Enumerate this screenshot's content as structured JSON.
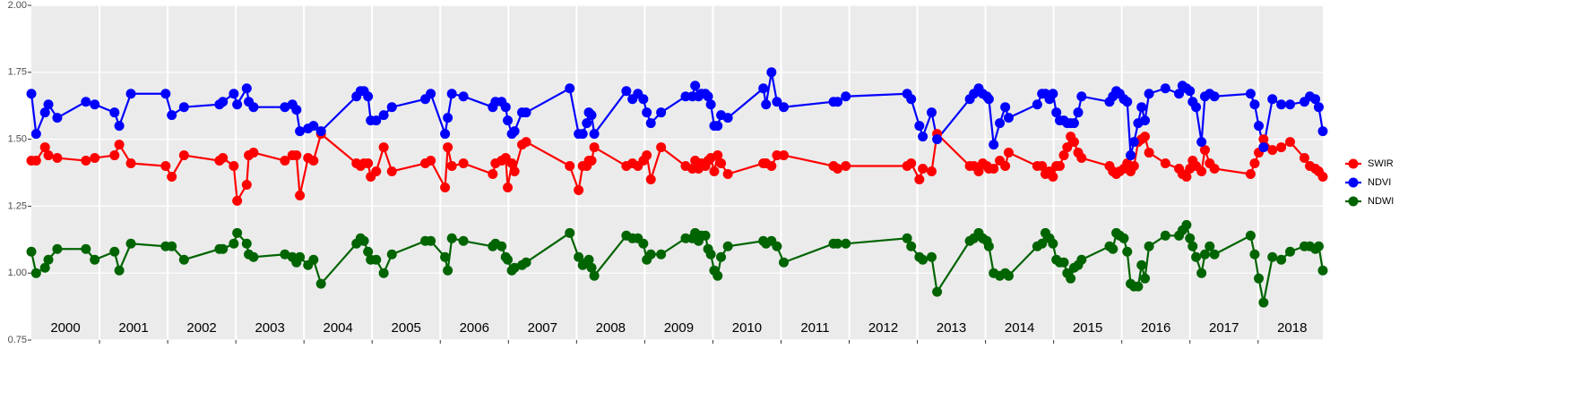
{
  "chart_data": {
    "type": "line",
    "x": [
      2000.0,
      2000.07,
      2000.2,
      2000.25,
      2000.38,
      2000.8,
      2000.93,
      2001.22,
      2001.29,
      2001.46,
      2001.97,
      2002.06,
      2002.24,
      2002.76,
      2002.81,
      2002.97,
      2003.02,
      2003.16,
      2003.19,
      2003.26,
      2003.72,
      2003.83,
      2003.89,
      2003.94,
      2004.06,
      2004.14,
      2004.25,
      2004.77,
      2004.83,
      2004.88,
      2004.94,
      2004.98,
      2005.06,
      2005.17,
      2005.29,
      2005.78,
      2005.86,
      2006.07,
      2006.11,
      2006.17,
      2006.34,
      2006.77,
      2006.81,
      2006.9,
      2006.96,
      2006.99,
      2007.05,
      2007.09,
      2007.2,
      2007.26,
      2007.9,
      2008.03,
      2008.09,
      2008.15,
      2008.18,
      2008.22,
      2008.26,
      2008.73,
      2008.82,
      2008.9,
      2008.98,
      2009.03,
      2009.09,
      2009.24,
      2009.6,
      2009.7,
      2009.74,
      2009.79,
      2009.83,
      2009.89,
      2009.93,
      2009.97,
      2010.02,
      2010.07,
      2010.12,
      2010.22,
      2010.74,
      2010.78,
      2010.86,
      2010.94,
      2011.04,
      2011.77,
      2011.83,
      2011.95,
      2012.85,
      2012.91,
      2013.03,
      2013.08,
      2013.21,
      2013.29,
      2013.77,
      2013.83,
      2013.9,
      2013.96,
      2014.02,
      2014.05,
      2014.12,
      2014.21,
      2014.29,
      2014.34,
      2014.76,
      2014.83,
      2014.88,
      2014.94,
      2014.99,
      2015.04,
      2015.09,
      2015.15,
      2015.2,
      2015.25,
      2015.3,
      2015.36,
      2015.41,
      2015.82,
      2015.87,
      2015.92,
      2015.97,
      2016.03,
      2016.08,
      2016.13,
      2016.18,
      2016.24,
      2016.29,
      2016.34,
      2016.4,
      2016.64,
      2016.84,
      2016.89,
      2016.95,
      2017.0,
      2017.04,
      2017.09,
      2017.17,
      2017.22,
      2017.29,
      2017.36,
      2017.89,
      2017.95,
      2018.01,
      2018.08,
      2018.21,
      2018.34,
      2018.47,
      2018.68,
      2018.76,
      2018.84,
      2018.89,
      2018.95
    ],
    "series": [
      {
        "name": "SWIR",
        "color": "#ff0000",
        "values": [
          1.42,
          1.42,
          1.47,
          1.44,
          1.43,
          1.42,
          1.43,
          1.44,
          1.48,
          1.41,
          1.4,
          1.36,
          1.44,
          1.42,
          1.43,
          1.4,
          1.27,
          1.33,
          1.44,
          1.45,
          1.42,
          1.44,
          1.44,
          1.29,
          1.43,
          1.42,
          1.52,
          1.41,
          1.4,
          1.41,
          1.41,
          1.36,
          1.38,
          1.47,
          1.38,
          1.41,
          1.42,
          1.32,
          1.47,
          1.4,
          1.41,
          1.37,
          1.41,
          1.42,
          1.43,
          1.32,
          1.41,
          1.38,
          1.48,
          1.49,
          1.4,
          1.31,
          1.4,
          1.4,
          1.42,
          1.42,
          1.47,
          1.4,
          1.41,
          1.4,
          1.42,
          1.44,
          1.35,
          1.47,
          1.4,
          1.39,
          1.42,
          1.39,
          1.41,
          1.4,
          1.42,
          1.43,
          1.38,
          1.44,
          1.41,
          1.37,
          1.41,
          1.41,
          1.4,
          1.44,
          1.44,
          1.4,
          1.39,
          1.4,
          1.4,
          1.41,
          1.35,
          1.39,
          1.38,
          1.52,
          1.4,
          1.4,
          1.38,
          1.41,
          1.4,
          1.39,
          1.39,
          1.42,
          1.4,
          1.45,
          1.4,
          1.4,
          1.37,
          1.38,
          1.36,
          1.4,
          1.4,
          1.44,
          1.47,
          1.51,
          1.49,
          1.45,
          1.43,
          1.4,
          1.38,
          1.37,
          1.38,
          1.39,
          1.41,
          1.38,
          1.4,
          1.49,
          1.5,
          1.51,
          1.45,
          1.41,
          1.39,
          1.37,
          1.36,
          1.39,
          1.42,
          1.4,
          1.38,
          1.46,
          1.41,
          1.39,
          1.37,
          1.41,
          1.45,
          1.5,
          1.46,
          1.47,
          1.49,
          1.43,
          1.4,
          1.39,
          1.38,
          1.36
        ]
      },
      {
        "name": "NDVI",
        "color": "#0000ff",
        "values": [
          1.67,
          1.52,
          1.6,
          1.63,
          1.58,
          1.64,
          1.63,
          1.6,
          1.55,
          1.67,
          1.67,
          1.59,
          1.62,
          1.63,
          1.64,
          1.67,
          1.63,
          1.69,
          1.64,
          1.62,
          1.62,
          1.63,
          1.61,
          1.53,
          1.54,
          1.55,
          1.53,
          1.66,
          1.68,
          1.68,
          1.66,
          1.57,
          1.57,
          1.59,
          1.62,
          1.65,
          1.67,
          1.52,
          1.58,
          1.67,
          1.66,
          1.62,
          1.64,
          1.64,
          1.62,
          1.57,
          1.52,
          1.53,
          1.6,
          1.6,
          1.69,
          1.52,
          1.52,
          1.56,
          1.6,
          1.59,
          1.52,
          1.68,
          1.65,
          1.67,
          1.65,
          1.6,
          1.56,
          1.6,
          1.66,
          1.66,
          1.7,
          1.66,
          1.67,
          1.67,
          1.66,
          1.63,
          1.55,
          1.55,
          1.59,
          1.58,
          1.69,
          1.63,
          1.75,
          1.64,
          1.62,
          1.64,
          1.64,
          1.66,
          1.67,
          1.65,
          1.55,
          1.51,
          1.6,
          1.5,
          1.65,
          1.67,
          1.69,
          1.67,
          1.66,
          1.65,
          1.48,
          1.56,
          1.62,
          1.58,
          1.63,
          1.67,
          1.67,
          1.65,
          1.67,
          1.6,
          1.57,
          1.57,
          1.56,
          1.56,
          1.56,
          1.6,
          1.66,
          1.64,
          1.66,
          1.68,
          1.67,
          1.65,
          1.64,
          1.44,
          1.49,
          1.56,
          1.62,
          1.57,
          1.67,
          1.69,
          1.67,
          1.7,
          1.69,
          1.68,
          1.64,
          1.62,
          1.49,
          1.66,
          1.67,
          1.66,
          1.67,
          1.63,
          1.55,
          1.47,
          1.65,
          1.63,
          1.63,
          1.64,
          1.66,
          1.65,
          1.62,
          1.53
        ]
      },
      {
        "name": "NDWI",
        "color": "#006400",
        "values": [
          1.08,
          1.0,
          1.02,
          1.05,
          1.09,
          1.09,
          1.05,
          1.08,
          1.01,
          1.11,
          1.1,
          1.1,
          1.05,
          1.09,
          1.09,
          1.11,
          1.15,
          1.11,
          1.07,
          1.06,
          1.07,
          1.06,
          1.04,
          1.06,
          1.03,
          1.05,
          0.96,
          1.11,
          1.13,
          1.12,
          1.08,
          1.05,
          1.05,
          1.0,
          1.07,
          1.12,
          1.12,
          1.06,
          1.01,
          1.13,
          1.12,
          1.1,
          1.11,
          1.1,
          1.06,
          1.05,
          1.01,
          1.02,
          1.03,
          1.04,
          1.15,
          1.06,
          1.03,
          1.04,
          1.05,
          1.02,
          0.99,
          1.14,
          1.13,
          1.13,
          1.11,
          1.05,
          1.07,
          1.07,
          1.13,
          1.13,
          1.15,
          1.12,
          1.14,
          1.14,
          1.09,
          1.07,
          1.01,
          0.99,
          1.06,
          1.1,
          1.12,
          1.11,
          1.12,
          1.1,
          1.04,
          1.11,
          1.11,
          1.11,
          1.13,
          1.1,
          1.06,
          1.05,
          1.06,
          0.93,
          1.12,
          1.13,
          1.15,
          1.13,
          1.12,
          1.1,
          1.0,
          0.99,
          1.0,
          0.99,
          1.1,
          1.11,
          1.15,
          1.13,
          1.11,
          1.05,
          1.04,
          1.04,
          1.0,
          0.98,
          1.02,
          1.03,
          1.05,
          1.1,
          1.09,
          1.15,
          1.14,
          1.13,
          1.08,
          0.96,
          0.95,
          0.95,
          1.03,
          0.98,
          1.1,
          1.14,
          1.14,
          1.16,
          1.18,
          1.13,
          1.1,
          1.06,
          1.0,
          1.07,
          1.1,
          1.07,
          1.14,
          1.07,
          0.98,
          0.89,
          1.06,
          1.05,
          1.08,
          1.1,
          1.1,
          1.09,
          1.1,
          1.01
        ]
      }
    ],
    "xlim": [
      2000,
      2018.95
    ],
    "xticks": [
      2001,
      2002,
      2003,
      2004,
      2005,
      2006,
      2007,
      2008,
      2009,
      2010,
      2011,
      2012,
      2013,
      2014,
      2015,
      2016,
      2017,
      2018
    ],
    "year_labels": [
      2000,
      2001,
      2002,
      2003,
      2004,
      2005,
      2006,
      2007,
      2008,
      2009,
      2010,
      2011,
      2012,
      2013,
      2014,
      2015,
      2016,
      2017,
      2018
    ],
    "ylim": [
      0.75,
      2.0
    ],
    "yticks": [
      {
        "value": 0.75,
        "label": "0.75"
      },
      {
        "value": 1.0,
        "label": "1.00"
      },
      {
        "value": 1.25,
        "label": "1.25"
      },
      {
        "value": 1.5,
        "label": "1.50"
      },
      {
        "value": 1.75,
        "label": "1.75"
      },
      {
        "value": 2.0,
        "label": "2.00"
      }
    ],
    "grid": true,
    "legend": "right"
  }
}
